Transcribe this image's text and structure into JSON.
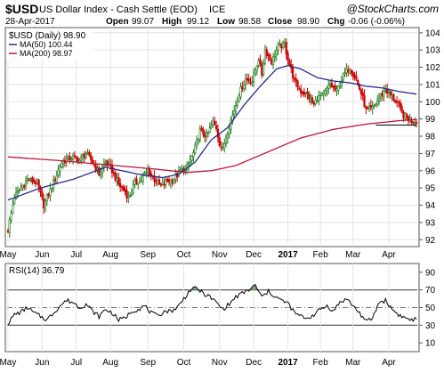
{
  "header": {
    "symbol": "$USD",
    "name": "US Dollar Index - Cash Settle (EOD)",
    "exchange": "ICE",
    "watermark": "@StockCharts.com",
    "date": "28-Apr-2017",
    "open_label": "Open",
    "open_value": "99.07",
    "high_label": "High",
    "high_value": "99.12",
    "low_label": "Low",
    "low_value": "98.58",
    "close_label": "Close",
    "close_value": "98.90",
    "chg_label": "Chg",
    "chg_value": "-0.06 (-0.06%)"
  },
  "legend": {
    "series_label": "$USD (Daily) 98.90",
    "ma50_label": "MA(50) 100.44",
    "ma200_label": "MA(200) 98.97"
  },
  "rsi": {
    "label": "RSI(14) 36.79"
  },
  "colors": {
    "up": "#1a7a1a",
    "down": "#cc0000",
    "ma50": "#2a2a8a",
    "ma200": "#c0143c",
    "rsi_line": "#000000",
    "rsi_fill": "#6b8e6b",
    "grid": "#e4e4e4",
    "frame": "#555555",
    "tick_color": "#555555"
  },
  "chart_data": [
    {
      "type": "candlestick",
      "title": "$USD US Dollar Index - Cash Settle (EOD) ICE",
      "ylim": [
        91.6,
        104.3
      ],
      "y_ticks": [
        92,
        93,
        94,
        95,
        96,
        97,
        98,
        99,
        100,
        101,
        102,
        103,
        104
      ],
      "x_labels": [
        "May",
        "Jun",
        "Jul",
        "Aug",
        "Sep",
        "Oct",
        "Nov",
        "Dec",
        "2017",
        "Feb",
        "Mar",
        "Apr"
      ],
      "x_label_pos": [
        0,
        21,
        42,
        63,
        86,
        108,
        130,
        151,
        172,
        192,
        212,
        234
      ],
      "n_days": 252,
      "close_anchors": [
        [
          0,
          92.6
        ],
        [
          4,
          94.5
        ],
        [
          12,
          95.5
        ],
        [
          18,
          95.3
        ],
        [
          22,
          94.0
        ],
        [
          28,
          95.3
        ],
        [
          33,
          96.5
        ],
        [
          40,
          96.8
        ],
        [
          44,
          96.6
        ],
        [
          48,
          97.0
        ],
        [
          52,
          96.5
        ],
        [
          56,
          95.8
        ],
        [
          60,
          96.5
        ],
        [
          64,
          96.0
        ],
        [
          68,
          95.2
        ],
        [
          72,
          94.8
        ],
        [
          74,
          94.4
        ],
        [
          78,
          95.3
        ],
        [
          82,
          95.5
        ],
        [
          86,
          96.0
        ],
        [
          90,
          95.5
        ],
        [
          94,
          95.1
        ],
        [
          98,
          95.4
        ],
        [
          102,
          95.5
        ],
        [
          106,
          96.0
        ],
        [
          110,
          96.2
        ],
        [
          114,
          97.0
        ],
        [
          118,
          98.3
        ],
        [
          122,
          98.0
        ],
        [
          126,
          98.8
        ],
        [
          128,
          98.5
        ],
        [
          130,
          97.6
        ],
        [
          132,
          97.2
        ],
        [
          134,
          98.0
        ],
        [
          138,
          99.2
        ],
        [
          142,
          100.5
        ],
        [
          146,
          101.3
        ],
        [
          150,
          101.2
        ],
        [
          154,
          102.5
        ],
        [
          156,
          101.6
        ],
        [
          158,
          103.0
        ],
        [
          162,
          102.3
        ],
        [
          166,
          103.2
        ],
        [
          170,
          103.3
        ],
        [
          172,
          102.5
        ],
        [
          176,
          101.2
        ],
        [
          180,
          100.6
        ],
        [
          184,
          100.4
        ],
        [
          188,
          99.8
        ],
        [
          190,
          100.2
        ],
        [
          194,
          100.4
        ],
        [
          198,
          101.0
        ],
        [
          202,
          100.6
        ],
        [
          206,
          101.5
        ],
        [
          210,
          102.0
        ],
        [
          214,
          101.3
        ],
        [
          218,
          100.2
        ],
        [
          220,
          99.5
        ],
        [
          224,
          99.6
        ],
        [
          228,
          100.2
        ],
        [
          232,
          100.7
        ],
        [
          236,
          100.3
        ],
        [
          240,
          99.8
        ],
        [
          242,
          99.3
        ],
        [
          246,
          99.0
        ],
        [
          248,
          98.9
        ],
        [
          251,
          98.9
        ]
      ],
      "ma50_anchors": [
        [
          0,
          94.3
        ],
        [
          20,
          95.0
        ],
        [
          40,
          95.5
        ],
        [
          60,
          96.2
        ],
        [
          80,
          95.8
        ],
        [
          95,
          95.6
        ],
        [
          105,
          95.8
        ],
        [
          115,
          96.5
        ],
        [
          125,
          97.8
        ],
        [
          135,
          98.5
        ],
        [
          145,
          99.8
        ],
        [
          155,
          100.9
        ],
        [
          165,
          101.9
        ],
        [
          172,
          102.1
        ],
        [
          180,
          101.9
        ],
        [
          190,
          101.4
        ],
        [
          200,
          101.2
        ],
        [
          210,
          101.1
        ],
        [
          220,
          100.9
        ],
        [
          230,
          100.8
        ],
        [
          240,
          100.6
        ],
        [
          251,
          100.44
        ]
      ],
      "ma200_anchors": [
        [
          0,
          96.8
        ],
        [
          30,
          96.6
        ],
        [
          60,
          96.35
        ],
        [
          90,
          96.1
        ],
        [
          110,
          95.9
        ],
        [
          125,
          96.0
        ],
        [
          140,
          96.3
        ],
        [
          160,
          97.1
        ],
        [
          180,
          97.9
        ],
        [
          200,
          98.4
        ],
        [
          220,
          98.7
        ],
        [
          240,
          98.9
        ],
        [
          251,
          98.97
        ]
      ],
      "support_line": [
        [
          226,
          98.65
        ],
        [
          251,
          98.65
        ]
      ],
      "series": [
        {
          "name": "$USD (Daily)",
          "last": 98.9
        },
        {
          "name": "MA(50)",
          "last": 100.44
        },
        {
          "name": "MA(200)",
          "last": 98.97
        }
      ]
    },
    {
      "type": "line",
      "title": "RSI(14) 36.79",
      "ylim": [
        0,
        100
      ],
      "y_ticks": [
        10,
        30,
        50,
        70,
        90
      ],
      "ref_lines": [
        30,
        70
      ],
      "center_line": 50,
      "rsi_anchors": [
        [
          0,
          32
        ],
        [
          4,
          42
        ],
        [
          8,
          45
        ],
        [
          12,
          50
        ],
        [
          16,
          44
        ],
        [
          20,
          40
        ],
        [
          24,
          36
        ],
        [
          28,
          44
        ],
        [
          32,
          52
        ],
        [
          36,
          58
        ],
        [
          40,
          56
        ],
        [
          44,
          50
        ],
        [
          48,
          54
        ],
        [
          52,
          46
        ],
        [
          56,
          40
        ],
        [
          60,
          48
        ],
        [
          64,
          44
        ],
        [
          68,
          36
        ],
        [
          72,
          38
        ],
        [
          76,
          46
        ],
        [
          80,
          48
        ],
        [
          84,
          52
        ],
        [
          88,
          44
        ],
        [
          92,
          40
        ],
        [
          96,
          46
        ],
        [
          100,
          46
        ],
        [
          104,
          50
        ],
        [
          108,
          60
        ],
        [
          112,
          70
        ],
        [
          116,
          72
        ],
        [
          120,
          66
        ],
        [
          124,
          62
        ],
        [
          128,
          56
        ],
        [
          132,
          48
        ],
        [
          136,
          54
        ],
        [
          140,
          62
        ],
        [
          144,
          66
        ],
        [
          148,
          70
        ],
        [
          152,
          75
        ],
        [
          156,
          62
        ],
        [
          160,
          68
        ],
        [
          164,
          63
        ],
        [
          168,
          58
        ],
        [
          172,
          55
        ],
        [
          176,
          44
        ],
        [
          180,
          40
        ],
        [
          184,
          38
        ],
        [
          188,
          42
        ],
        [
          192,
          48
        ],
        [
          196,
          52
        ],
        [
          200,
          46
        ],
        [
          204,
          56
        ],
        [
          208,
          60
        ],
        [
          212,
          52
        ],
        [
          216,
          44
        ],
        [
          220,
          34
        ],
        [
          224,
          38
        ],
        [
          228,
          56
        ],
        [
          232,
          58
        ],
        [
          236,
          48
        ],
        [
          240,
          42
        ],
        [
          244,
          38
        ],
        [
          248,
          36
        ],
        [
          251,
          36.79
        ]
      ]
    }
  ]
}
